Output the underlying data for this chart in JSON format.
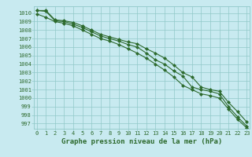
{
  "xlabel": "Graphe pression niveau de la mer (hPa)",
  "x": [
    0,
    1,
    2,
    3,
    4,
    5,
    6,
    7,
    8,
    9,
    10,
    11,
    12,
    13,
    14,
    15,
    16,
    17,
    18,
    19,
    20,
    21,
    22,
    23
  ],
  "line1": [
    1010.3,
    1010.3,
    1009.2,
    1009.1,
    1008.9,
    1008.5,
    1008.0,
    1007.5,
    1007.2,
    1006.9,
    1006.6,
    1006.4,
    1005.8,
    1005.3,
    1004.7,
    1003.9,
    1003.0,
    1002.5,
    1001.3,
    1001.0,
    1000.8,
    999.5,
    998.4,
    997.2
  ],
  "line2": [
    1010.3,
    1010.2,
    1009.1,
    1009.0,
    1008.7,
    1008.3,
    1007.8,
    1007.3,
    1007.0,
    1006.7,
    1006.3,
    1006.0,
    1005.3,
    1004.5,
    1004.0,
    1003.2,
    1002.6,
    1001.3,
    1001.0,
    1000.8,
    1000.5,
    999.0,
    997.8,
    996.7
  ],
  "line3": [
    1009.9,
    1009.5,
    1009.0,
    1008.8,
    1008.5,
    1008.0,
    1007.5,
    1007.0,
    1006.7,
    1006.3,
    1005.8,
    1005.3,
    1004.7,
    1004.0,
    1003.3,
    1002.5,
    1001.5,
    1001.0,
    1000.5,
    1000.3,
    1000.0,
    998.7,
    997.5,
    996.5
  ],
  "line_color": "#2d6a2d",
  "bg_color": "#c8eaf0",
  "grid_color": "#90c8c8",
  "ylim": [
    996.4,
    1010.8
  ],
  "xlim": [
    -0.3,
    23.3
  ],
  "yticks": [
    997,
    998,
    999,
    1000,
    1001,
    1002,
    1003,
    1004,
    1005,
    1006,
    1007,
    1008,
    1009,
    1010
  ],
  "xticks": [
    0,
    1,
    2,
    3,
    4,
    5,
    6,
    7,
    8,
    9,
    10,
    11,
    12,
    13,
    14,
    15,
    16,
    17,
    18,
    19,
    20,
    21,
    22,
    23
  ],
  "marker": "D",
  "marker_size": 2.0,
  "line_width": 0.8,
  "xlabel_fontsize": 6.5,
  "tick_fontsize": 5.0
}
